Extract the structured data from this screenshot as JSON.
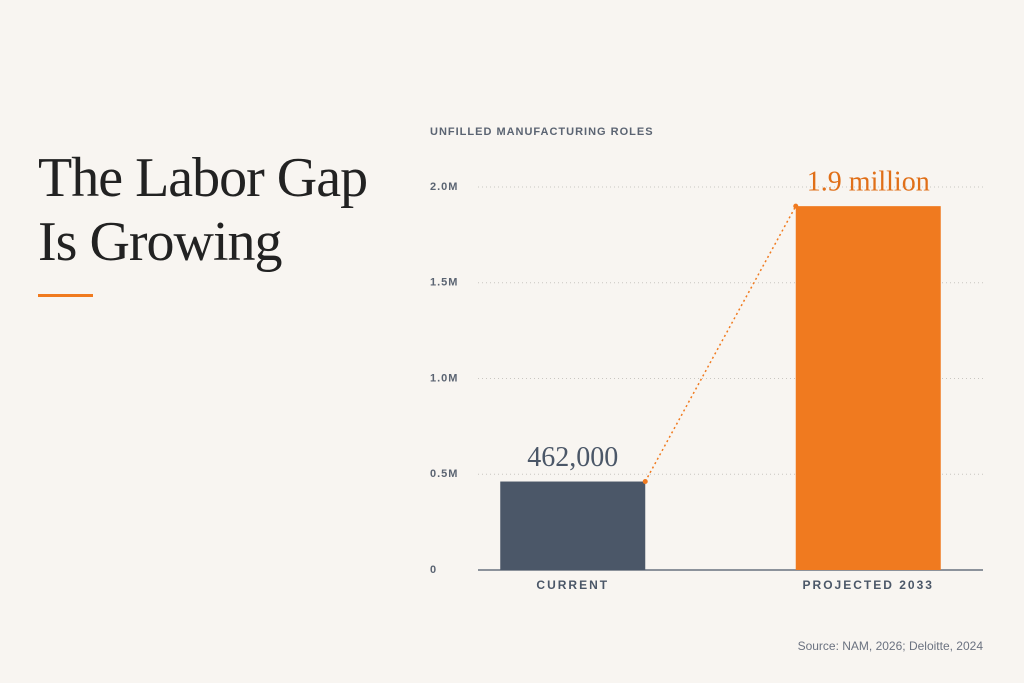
{
  "chart_data": {
    "type": "bar",
    "title": "The Labor Gap Is Growing",
    "y_label": "UNFILLED MANUFACTURING ROLES",
    "categories": [
      "CURRENT",
      "PROJECTED 2033"
    ],
    "values": [
      462000,
      1900000
    ],
    "value_labels": [
      "462,000",
      "1.9 million"
    ],
    "colors": [
      "#4b5768",
      "#f07a1f"
    ],
    "label_colors": [
      "#4b5768",
      "#e06f18"
    ],
    "ylim": [
      0,
      2000000
    ],
    "yticks": [
      0,
      {
        "value": 500000,
        "label": "0.5M"
      },
      {
        "value": 1000000,
        "label": "1.0M"
      },
      {
        "value": 1500000,
        "label": "1.5M"
      },
      {
        "value": 2000000,
        "label": "2.0M"
      }
    ],
    "grid": true,
    "connector": true,
    "source": "Source: NAM, 2026; Deloitte, 2024"
  }
}
